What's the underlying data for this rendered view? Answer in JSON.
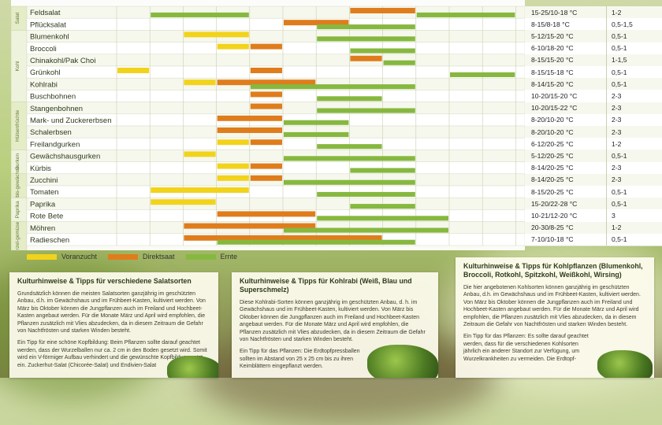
{
  "colors": {
    "voranzucht": "#f2d31b",
    "direktsaat": "#df7d1c",
    "ernte": "#86b83f"
  },
  "legend": [
    {
      "label": "Voranzucht",
      "color": "#f2d31b"
    },
    {
      "label": "Direktsaat",
      "color": "#df7d1c"
    },
    {
      "label": "Ernte",
      "color": "#86b83f"
    }
  ],
  "groups": [
    {
      "label": "Salat",
      "from": 0,
      "to": 2
    },
    {
      "label": "Kohl",
      "from": 2,
      "to": 8
    },
    {
      "label": "Hülsenfrüchte",
      "from": 8,
      "to": 12
    },
    {
      "label": "Gurken",
      "from": 12,
      "to": 14
    },
    {
      "label": "Kürbis-gewächse",
      "from": 14,
      "to": 16
    },
    {
      "label": "Paprika",
      "from": 16,
      "to": 18
    },
    {
      "label": "Wurzel-gemüse",
      "from": 18,
      "to": 21
    }
  ],
  "rows": [
    {
      "name": "Feldsalat",
      "temp": "15-25/10-18 °C",
      "dist": "1-2",
      "bars": [
        {
          "t": "e",
          "s": 1,
          "e": 4
        },
        {
          "t": "d",
          "s": 7,
          "e": 9
        },
        {
          "t": "e",
          "s": 9,
          "e": 12
        }
      ]
    },
    {
      "name": "Pflücksalat",
      "temp": "8-15/8-18 °C",
      "dist": "0,5-1,5",
      "bars": [
        {
          "t": "d",
          "s": 5,
          "e": 7
        },
        {
          "t": "e",
          "s": 6,
          "e": 9
        }
      ]
    },
    {
      "name": "Blumenkohl",
      "temp": "5-12/15-20 °C",
      "dist": "0,5-1",
      "bars": [
        {
          "t": "v",
          "s": 2,
          "e": 4
        },
        {
          "t": "e",
          "s": 6,
          "e": 9
        }
      ]
    },
    {
      "name": "Broccoli",
      "temp": "6-10/18-20 °C",
      "dist": "0,5-1",
      "bars": [
        {
          "t": "v",
          "s": 3,
          "e": 4
        },
        {
          "t": "d",
          "s": 4,
          "e": 5
        },
        {
          "t": "e",
          "s": 7,
          "e": 9
        }
      ]
    },
    {
      "name": "Chinakohl/Pak Choi",
      "temp": "8-15/15-20 °C",
      "dist": "1-1,5",
      "bars": [
        {
          "t": "d",
          "s": 7,
          "e": 8
        },
        {
          "t": "e",
          "s": 8,
          "e": 9
        }
      ]
    },
    {
      "name": "Grünkohl",
      "temp": "8-15/15-18 °C",
      "dist": "0,5-1",
      "bars": [
        {
          "t": "v",
          "s": 0,
          "e": 1
        },
        {
          "t": "d",
          "s": 4,
          "e": 5
        },
        {
          "t": "e",
          "s": 10,
          "e": 12
        }
      ]
    },
    {
      "name": "Kohlrabi",
      "temp": "8-14/15-20 °C",
      "dist": "0,5-1",
      "bars": [
        {
          "t": "v",
          "s": 2,
          "e": 3
        },
        {
          "t": "d",
          "s": 3,
          "e": 6
        },
        {
          "t": "e",
          "s": 4,
          "e": 9
        }
      ]
    },
    {
      "name": "Buschbohnen",
      "temp": "10-20/15-20 °C",
      "dist": "2-3",
      "bars": [
        {
          "t": "d",
          "s": 4,
          "e": 5
        },
        {
          "t": "e",
          "s": 6,
          "e": 8
        }
      ]
    },
    {
      "name": "Stangenbohnen",
      "temp": "10-20/15-22 °C",
      "dist": "2-3",
      "bars": [
        {
          "t": "d",
          "s": 4,
          "e": 5
        },
        {
          "t": "e",
          "s": 6,
          "e": 9
        }
      ]
    },
    {
      "name": "Mark- und Zuckererbsen",
      "temp": "8-20/10-20 °C",
      "dist": "2-3",
      "bars": [
        {
          "t": "d",
          "s": 3,
          "e": 5
        },
        {
          "t": "e",
          "s": 5,
          "e": 7
        }
      ]
    },
    {
      "name": "Schalerbsen",
      "temp": "8-20/10-20 °C",
      "dist": "2-3",
      "bars": [
        {
          "t": "d",
          "s": 3,
          "e": 5
        },
        {
          "t": "e",
          "s": 5,
          "e": 7
        }
      ]
    },
    {
      "name": "Freilandgurken",
      "temp": "6-12/20-25 °C",
      "dist": "1-2",
      "bars": [
        {
          "t": "v",
          "s": 3,
          "e": 4
        },
        {
          "t": "d",
          "s": 4,
          "e": 5
        },
        {
          "t": "e",
          "s": 6,
          "e": 8
        }
      ]
    },
    {
      "name": "Gewächshausgurken",
      "temp": "5-12/20-25 °C",
      "dist": "0,5-1",
      "bars": [
        {
          "t": "v",
          "s": 2,
          "e": 3
        },
        {
          "t": "e",
          "s": 5,
          "e": 9
        }
      ]
    },
    {
      "name": "Kürbis",
      "temp": "8-14/20-25 °C",
      "dist": "2-3",
      "bars": [
        {
          "t": "v",
          "s": 3,
          "e": 4
        },
        {
          "t": "d",
          "s": 4,
          "e": 5
        },
        {
          "t": "e",
          "s": 7,
          "e": 9
        }
      ]
    },
    {
      "name": "Zucchini",
      "temp": "8-14/20-25 °C",
      "dist": "2-3",
      "bars": [
        {
          "t": "v",
          "s": 3,
          "e": 4
        },
        {
          "t": "d",
          "s": 4,
          "e": 5
        },
        {
          "t": "e",
          "s": 5,
          "e": 9
        }
      ]
    },
    {
      "name": "Tomaten",
      "temp": "8-15/20-25 °C",
      "dist": "0,5-1",
      "bars": [
        {
          "t": "v",
          "s": 1,
          "e": 4
        },
        {
          "t": "e",
          "s": 6,
          "e": 9
        }
      ]
    },
    {
      "name": "Paprika",
      "temp": "15-20/22-28 °C",
      "dist": "0,5-1",
      "bars": [
        {
          "t": "v",
          "s": 1,
          "e": 3
        },
        {
          "t": "e",
          "s": 7,
          "e": 9
        }
      ]
    },
    {
      "name": "Rote Bete",
      "temp": "10-21/12-20 °C",
      "dist": "3",
      "bars": [
        {
          "t": "d",
          "s": 3,
          "e": 6
        },
        {
          "t": "e",
          "s": 6,
          "e": 10
        }
      ]
    },
    {
      "name": "Möhren",
      "temp": "20-30/8-25 °C",
      "dist": "1-2",
      "bars": [
        {
          "t": "d",
          "s": 2,
          "e": 6
        },
        {
          "t": "e",
          "s": 5,
          "e": 10
        }
      ]
    },
    {
      "name": "Radieschen",
      "temp": "7-10/10-18 °C",
      "dist": "0,5-1",
      "bars": [
        {
          "t": "d",
          "s": 2,
          "e": 8
        },
        {
          "t": "e",
          "s": 3,
          "e": 9
        }
      ]
    }
  ],
  "cards": [
    {
      "title": "Kulturhinweise & Tipps für verschiedene Salatsorten",
      "p1": "Grundsätzlich können die meisten Salatsorten ganzjährig im geschützten Anbau, d.h. im Gewächshaus und im Frühbeet-Kasten, kultiviert werden. Von März bis Oktober können die Jungpflanzen auch im Freiland und Hochbeet-Kasten angebaut werden. Für die Monate März und April wird empfohlen, die Pflanzen zusätzlich mit Vlies abzudecken, da in diesem Zeitraum die Gefahr von Nachtfrösten und starken Winden besteht.",
      "p2": "Ein Tipp für eine schöne Kopfbildung: Beim Pflanzen sollte darauf geachtet werden, dass der Wurzelballen nur ca. 2 cm in den Boden gesetzt wird. Somit wird ein V-förmiger Aufbau verhindert und die gewünschte Kopfbildung setzt ein. Zuckerhut-Salat (Chicorée-Salat) und Endivien-Salat"
    },
    {
      "title": "Kulturhinweise & Tipps für Kohlrabi (Weiß, Blau und Superschmelz)",
      "p1": "Diese Kohlrabi-Sorten können ganzjährig im geschützten Anbau, d. h. im Gewächshaus und im Frühbeet-Kasten, kultiviert werden. Von März bis Oktober können die Jungpflanzen auch im Freiland und Hochbeet-Kasten angebaut werden. Für die Monate März und April wird empfohlen, die Pflanzen zusätzlich mit Vlies abzudecken, da in diesem Zeitraum die Gefahr von Nachtfrösten und starken Winden besteht.",
      "p2": "Ein Tipp für das Pflanzen: Die Erdtopfpressballen sollten im Abstand von 25 x 25 cm bis zu ihren Keimblättern eingepflanzt werden."
    },
    {
      "title": "Kulturhinweise & Tipps für Kohlpflanzen (Blumenkohl, Broccoli, Rotkohl, Spitzkohl, Weißkohl, Wirsing)",
      "p1": "Die hier angebotenen Kohlsorten können ganzjährig im geschützten Anbau, d.h. im Gewächshaus und im Frühbeet-Kasten, kultiviert werden. Von März bis Oktober können die Jungpflanzen auch im Freiland und Hochbeet-Kasten angebaut werden. Für die Monate März und April wird empfohlen, die Pflanzen zusätzlich mit Vlies abzudecken, da in diesem Zeitraum die Gefahr von Nachtfrösten und starken Winden besteht.",
      "p2": "Ein Tipp für das Pflanzen: Es sollte darauf geachtet werden, dass für die verschiedenen Kohlsorten jährlich ein anderer Standort zur Verfügung, um Wurzelkrankheiten zu vermeiden. Die Erdtopf-"
    }
  ]
}
